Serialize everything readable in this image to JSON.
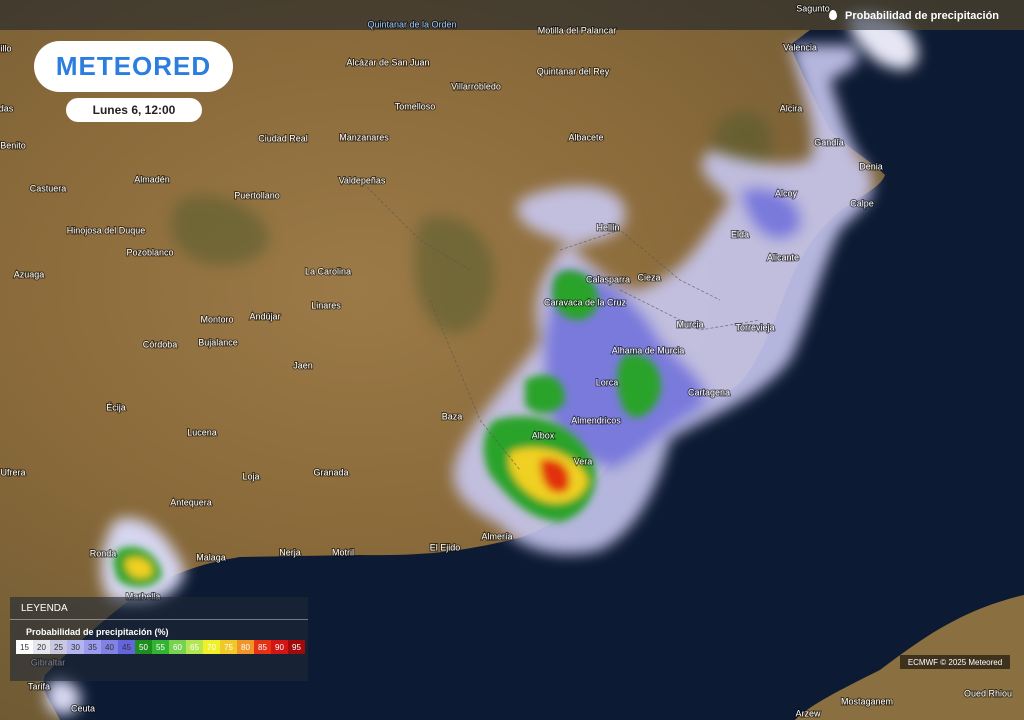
{
  "header": {
    "logo": "METEORED",
    "date": "Lunes 6, 12:00",
    "layer": "Probabilidad de precipitación"
  },
  "cities": [
    "Quintanar de la Orden",
    "Sagunto",
    "Motilla del Palancar",
    "Valencia",
    "Alcázar de San Juan",
    "Quintanar del Rey",
    "Villarrobledo",
    "Tomelloso",
    "Alcira",
    "Ciudad Real",
    "Manzanares",
    "Albacete",
    "Gandía",
    "Denia",
    "Almadén",
    "Puertollano",
    "Valdepeñas",
    "Alcoy",
    "Calpe",
    "Castuera",
    "Hellín",
    "Hinojosa del Duque",
    "Elda",
    "Pozoblanco",
    "Alicante",
    "Azuaga",
    "La Carolina",
    "Calasparra",
    "Cieza",
    "Caravaca de la Cruz",
    "Linares",
    "Montoro",
    "Andújar",
    "Murcia",
    "Torrevieja",
    "Córdoba",
    "Bujalance",
    "Alhama de Murcia",
    "Jaen",
    "Lorca",
    "Cartagena",
    "Écija",
    "Baza",
    "Almendricos",
    "Lucena",
    "Albox",
    "Vera",
    "Granada",
    "Loja",
    "Antequera",
    "Almería",
    "El Ejido",
    "Motril",
    "Nerja",
    "Malaga",
    "Ronda",
    "Marbella",
    "Gibraltar",
    "Tarifa",
    "Ceuta",
    "Arzew",
    "Mostaganem",
    "Oued Rhiou",
    "Ufrera",
    "Benito",
    "das",
    "illo"
  ],
  "legend": {
    "title": "LEYENDA",
    "subtitle": "Probabilidad de precipitación (%)",
    "steps": [
      15,
      20,
      25,
      30,
      35,
      40,
      45,
      50,
      55,
      60,
      65,
      70,
      75,
      80,
      85,
      90,
      95
    ]
  },
  "credit": "ECMWF © 2025 Meteored"
}
